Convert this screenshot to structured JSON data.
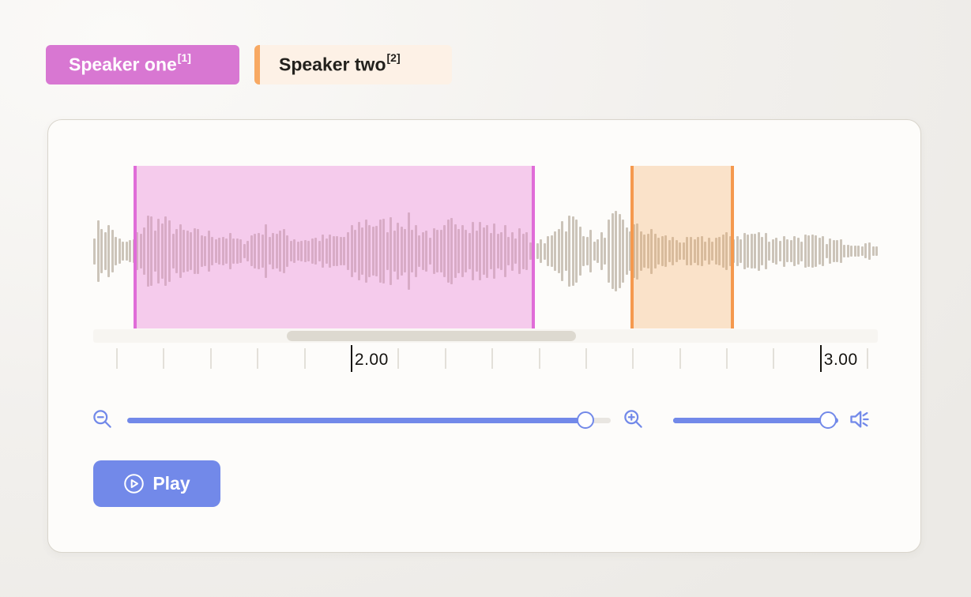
{
  "page": {
    "background_outer": "#f1efec",
    "card_background": "#fdfcfa",
    "card_border": "#d9d5cc"
  },
  "speaker_labels": [
    {
      "name": "Speaker one",
      "sup": "[1]",
      "selected": true,
      "color": "#d877d2",
      "text_color": "#ffffff"
    },
    {
      "name": "Speaker two",
      "sup": "[2]",
      "selected": false,
      "accent_color": "#f8a963",
      "bg_color": "#fdf1e6",
      "text_color": "#23211d"
    }
  ],
  "player": {
    "waveform": {
      "color": "#ccc4b9",
      "envelope": [
        [
          0.0,
          0.4
        ],
        [
          0.008,
          0.52
        ],
        [
          0.023,
          0.42
        ],
        [
          0.035,
          0.15
        ],
        [
          0.051,
          0.22
        ],
        [
          0.068,
          0.62
        ],
        [
          0.089,
          0.55
        ],
        [
          0.114,
          0.38
        ],
        [
          0.142,
          0.33
        ],
        [
          0.169,
          0.3
        ],
        [
          0.189,
          0.18
        ],
        [
          0.214,
          0.42
        ],
        [
          0.235,
          0.38
        ],
        [
          0.26,
          0.22
        ],
        [
          0.29,
          0.26
        ],
        [
          0.32,
          0.28
        ],
        [
          0.345,
          0.6
        ],
        [
          0.371,
          0.5
        ],
        [
          0.394,
          0.65
        ],
        [
          0.418,
          0.4
        ],
        [
          0.442,
          0.32
        ],
        [
          0.464,
          0.68
        ],
        [
          0.486,
          0.52
        ],
        [
          0.515,
          0.42
        ],
        [
          0.539,
          0.38
        ],
        [
          0.559,
          0.25
        ],
        [
          0.575,
          0.15
        ],
        [
          0.592,
          0.55
        ],
        [
          0.612,
          0.6
        ],
        [
          0.629,
          0.4
        ],
        [
          0.644,
          0.2
        ],
        [
          0.663,
          0.62
        ],
        [
          0.68,
          0.5
        ],
        [
          0.703,
          0.4
        ],
        [
          0.726,
          0.28
        ],
        [
          0.753,
          0.2
        ],
        [
          0.783,
          0.24
        ],
        [
          0.814,
          0.3
        ],
        [
          0.844,
          0.34
        ],
        [
          0.874,
          0.26
        ],
        [
          0.904,
          0.28
        ],
        [
          0.934,
          0.22
        ],
        [
          0.965,
          0.17
        ],
        [
          1.0,
          0.12
        ]
      ]
    },
    "regions": [
      {
        "label": "Speaker one",
        "start": 0.0514,
        "width": 0.5116,
        "border_color": "#e06cd8",
        "fill_color": "rgba(233,137,216,0.42)"
      },
      {
        "label": "Speaker two",
        "start": 0.6848,
        "width": 0.1319,
        "border_color": "#f5994e",
        "fill_color": "rgba(246,166,90,0.30)"
      }
    ],
    "scrollbar": {
      "thumb_start": 0.2467,
      "thumb_width": 0.3686
    },
    "ruler": {
      "ticks": [
        {
          "f": 0.0292
        },
        {
          "f": 0.089
        },
        {
          "f": 0.1488
        },
        {
          "f": 0.2086
        },
        {
          "f": 0.2684
        },
        {
          "f": 0.3282,
          "label": "2.00"
        },
        {
          "f": 0.388
        },
        {
          "f": 0.4478
        },
        {
          "f": 0.5077
        },
        {
          "f": 0.5675
        },
        {
          "f": 0.6273
        },
        {
          "f": 0.6871
        },
        {
          "f": 0.7469
        },
        {
          "f": 0.8067
        },
        {
          "f": 0.8665
        },
        {
          "f": 0.9263,
          "label": "3.00"
        },
        {
          "f": 0.9861
        }
      ]
    },
    "zoom_slider": {
      "value": 0.948,
      "accent": "#7289e9",
      "rest_color": "#e9e6e1"
    },
    "volume_slider": {
      "value": 0.938,
      "accent": "#7289e9"
    },
    "play_button": {
      "label": "Play",
      "color": "#7289e9",
      "text_color": "#ffffff"
    }
  }
}
